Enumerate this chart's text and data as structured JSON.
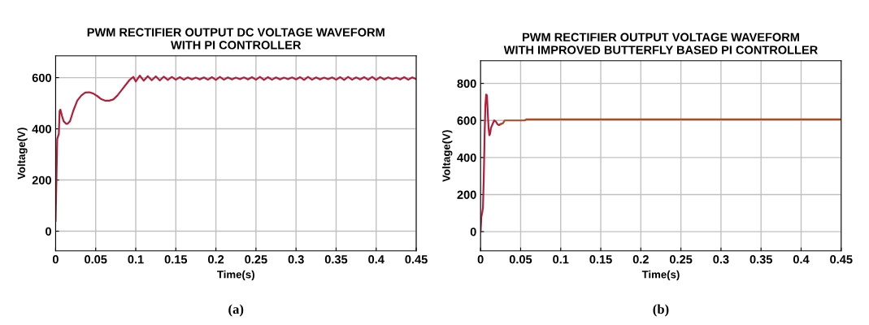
{
  "chart_data": [
    {
      "type": "line",
      "title": "PWM RECTIFIER OUTPUT DC VOLTAGE WAVEFORM\nWITH PI CONTROLLER",
      "xlabel": "Time(s)",
      "ylabel": "Voltage(V)",
      "annotations": [
        "(a)"
      ],
      "grid": true,
      "line_style": "solid",
      "xlim": [
        0,
        0.45
      ],
      "ylim": [
        -77,
        685
      ],
      "xticks": [
        0,
        0.05,
        0.1,
        0.15,
        0.2,
        0.25,
        0.3,
        0.35,
        0.4,
        0.45
      ],
      "yticks": [
        0,
        200,
        400,
        600
      ],
      "series": [
        {
          "color": "#b0203a",
          "x": [
            0,
            0.001,
            0.002,
            0.004,
            0.005,
            0.006,
            0.008,
            0.01,
            0.013,
            0.015,
            0.018,
            0.022,
            0.027,
            0.032,
            0.037,
            0.042,
            0.047,
            0.052,
            0.057,
            0.062,
            0.067,
            0.072,
            0.077,
            0.082,
            0.087,
            0.092,
            0.097,
            0.1,
            0.105,
            0.11,
            0.115,
            0.12,
            0.125,
            0.13,
            0.135,
            0.14,
            0.145,
            0.15,
            0.155,
            0.16,
            0.165,
            0.17,
            0.175,
            0.18,
            0.185,
            0.19,
            0.195,
            0.2,
            0.205,
            0.21,
            0.215,
            0.22,
            0.225,
            0.23,
            0.235,
            0.24,
            0.245,
            0.25,
            0.255,
            0.26,
            0.265,
            0.27,
            0.275,
            0.28,
            0.285,
            0.29,
            0.295,
            0.3,
            0.305,
            0.31,
            0.315,
            0.32,
            0.325,
            0.33,
            0.335,
            0.34,
            0.345,
            0.35,
            0.355,
            0.36,
            0.365,
            0.37,
            0.375,
            0.38,
            0.385,
            0.39,
            0.395,
            0.4,
            0.405,
            0.41,
            0.415,
            0.42,
            0.425,
            0.43,
            0.435,
            0.44,
            0.445,
            0.45
          ],
          "values": [
            40,
            200,
            360,
            380,
            470,
            475,
            450,
            430,
            420,
            420,
            430,
            470,
            510,
            530,
            542,
            543,
            538,
            528,
            516,
            510,
            510,
            515,
            530,
            550,
            570,
            590,
            603,
            585,
            608,
            588,
            606,
            590,
            605,
            589,
            604,
            591,
            603,
            592,
            602,
            592,
            601,
            593,
            600,
            593,
            601,
            592,
            602,
            591,
            603,
            592,
            601,
            593,
            600,
            594,
            601,
            593,
            602,
            592,
            603,
            591,
            602,
            592,
            601,
            593,
            600,
            594,
            601,
            593,
            602,
            591,
            603,
            592,
            601,
            593,
            600,
            594,
            601,
            592,
            602,
            591,
            603,
            592,
            601,
            593,
            602,
            592,
            603,
            591,
            602,
            593,
            601,
            594,
            600,
            593,
            602,
            592,
            601,
            594
          ]
        }
      ]
    },
    {
      "type": "line",
      "title": "PWM RECTIFIER OUTPUT VOLTAGE WAVEFORM\nWITH IMPROVED BUTTERFLY BASED PI CONTROLLER",
      "xlabel": "Time(s)",
      "ylabel": "Voltage(V)",
      "annotations": [
        "(b)"
      ],
      "grid": true,
      "line_style": "solid",
      "xlim": [
        0,
        0.45
      ],
      "ylim": [
        -104,
        922
      ],
      "xticks": [
        0,
        0.05,
        0.1,
        0.15,
        0.2,
        0.25,
        0.3,
        0.35,
        0.4,
        0.45
      ],
      "yticks": [
        0,
        200,
        400,
        600,
        800
      ],
      "series": [
        {
          "color": "#b0203a",
          "x": [
            0,
            0.001,
            0.002,
            0.003,
            0.004,
            0.005,
            0.006,
            0.007,
            0.008,
            0.009,
            0.01,
            0.011,
            0.012,
            0.013,
            0.015,
            0.017,
            0.019,
            0.021,
            0.023,
            0.025
          ],
          "values": [
            0,
            80,
            100,
            130,
            290,
            510,
            680,
            740,
            735,
            640,
            560,
            520,
            530,
            560,
            580,
            600,
            595,
            580,
            575,
            580
          ]
        },
        {
          "color": "#b04a20",
          "x": [
            0.025,
            0.028,
            0.03,
            0.055,
            0.057,
            0.45
          ],
          "values": [
            580,
            585,
            600,
            600,
            606,
            606
          ]
        }
      ]
    }
  ]
}
